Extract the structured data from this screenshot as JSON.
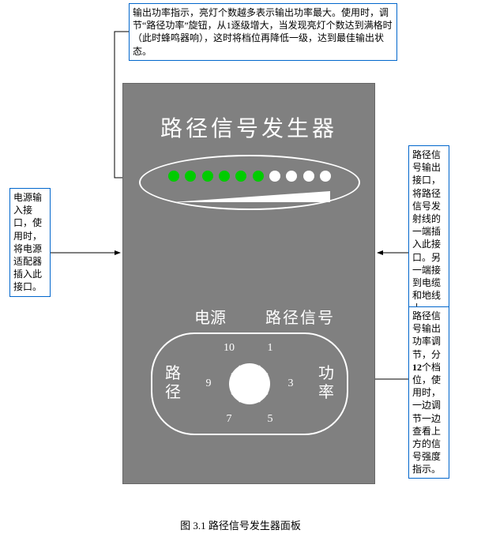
{
  "caption": "图 3.1 路径信号发生器面板",
  "device": {
    "title": "路径信号发生器",
    "bg_color": "#808080",
    "title_color": "#ffffff",
    "inner_label_left": "电源",
    "inner_label_right": "路径信号",
    "knob_label_left": "路\n径",
    "knob_label_right": "功\n率",
    "leds": {
      "count": 10,
      "lit": 6,
      "on_color": "#00cc00",
      "off_color": "#ffffff"
    },
    "knob": {
      "ticks": 12,
      "labels": {
        "1": "1",
        "3": "3",
        "5": "5",
        "7": "7",
        "9": "9",
        "10": "10"
      },
      "radius_inner": 26,
      "radius_tick_outer": 42,
      "label_radius": 52
    }
  },
  "callouts": {
    "top": "输出功率指示，亮灯个数越多表示输出功率最大。使用时，调节“路径功率”旋钮，从1逐级增大，当发现亮灯个数达到满格时（此时蜂鸣器响），这时将档位再降低一级，达到最佳输出状态。",
    "left": "电源输入接口，使用时，将电源适配器插入此接口。",
    "right_upper": "路径信号输出接口，将路径信号发射线的一端插入此接口。另一端接到电缆和地线上。",
    "right_lower": "路径信号输出功率调节，分12个档位，使用时，一边调节一边查看上方的信号强度指示。"
  },
  "right_lower_bold": "12",
  "colors": {
    "callout_border": "#0066cc",
    "arrow": "#000000",
    "text": "#000000"
  }
}
